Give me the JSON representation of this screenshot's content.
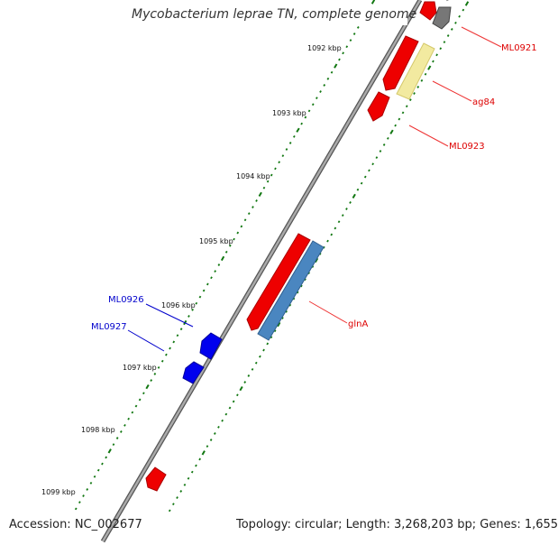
{
  "title": "Mycobacterium leprae TN, complete genome",
  "footer": {
    "accession": "Accession: NC_002677",
    "summary": "Topology: circular; Length: 3,268,203 bp; Genes: 1,655"
  },
  "kbp_labels": [
    "1092 kbp",
    "1093 kbp",
    "1094 kbp",
    "1095 kbp",
    "1096 kbp",
    "1097 kbp",
    "1098 kbp",
    "1099 kbp"
  ],
  "gene_labels": {
    "ML0921": "ML0921",
    "ag84": "ag84",
    "ML0923": "ML0923",
    "glnA": "glnA",
    "ML0926": "ML0926",
    "ML0927": "ML0927"
  },
  "colors": {
    "forward_cds": "#ee0000",
    "reverse_gene": "#0000ee",
    "label_red": "#dd0000",
    "label_blue": "#0000cc",
    "tick_green": "#117711",
    "backbone": "#888888",
    "gene_bar": "#4a86c0",
    "misc_feature": "#f2eaa0",
    "gray_feature": "#777777"
  }
}
